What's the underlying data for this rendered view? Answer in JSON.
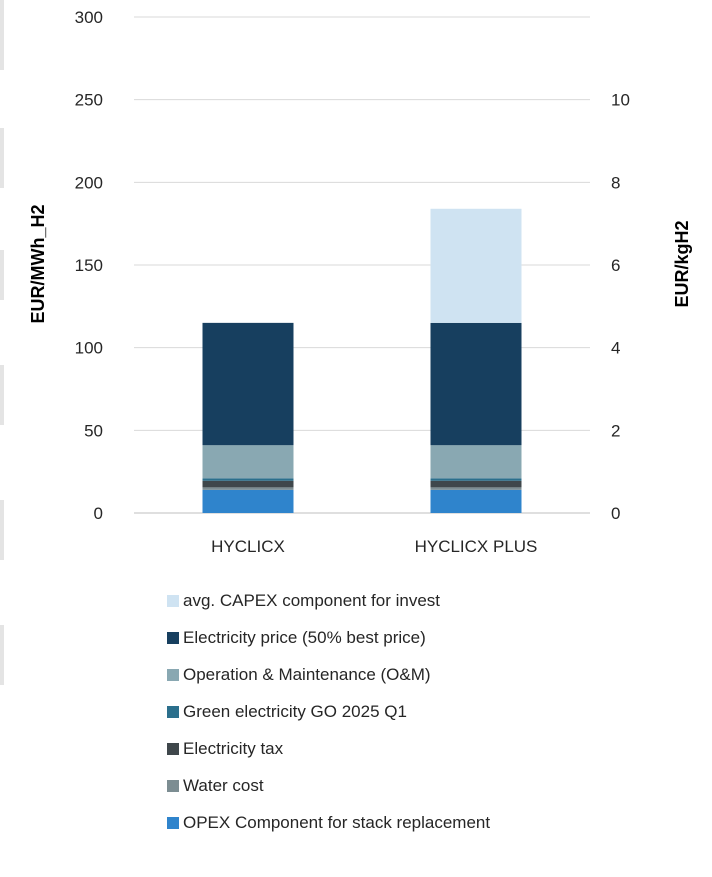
{
  "chart_data": {
    "type": "bar",
    "stacked": true,
    "categories": [
      "HYCLICX",
      "HYCLICX PLUS"
    ],
    "series": [
      {
        "name": "OPEX Component for stack replacement",
        "color": "#2f84cc",
        "values": [
          14,
          14
        ]
      },
      {
        "name": "Water cost",
        "color": "#7c8d92",
        "values": [
          1.5,
          1.5
        ]
      },
      {
        "name": "Electricity tax",
        "color": "#3f474b",
        "values": [
          4,
          4
        ]
      },
      {
        "name": "Green electricity GO 2025 Q1",
        "color": "#2b6f8c",
        "values": [
          1.5,
          1.5
        ]
      },
      {
        "name": "Operation & Maintenance (O&M)",
        "color": "#89a8b2",
        "values": [
          20,
          20
        ]
      },
      {
        "name": "Electricity price (50% best price)",
        "color": "#173f5f",
        "values": [
          74,
          74
        ]
      },
      {
        "name": "avg. CAPEX component for invest",
        "color": "#cfe3f2",
        "values": [
          0,
          69
        ]
      }
    ],
    "ylabel": "EUR/MWh_H2",
    "y2label": "EUR/kgH2",
    "ylim": [
      0,
      300
    ],
    "y2lim": [
      0,
      12
    ],
    "yticks": [
      "0",
      "50",
      "100",
      "150",
      "200",
      "250",
      "300"
    ],
    "y2ticks": [
      "0",
      "2",
      "4",
      "6",
      "8",
      "10"
    ],
    "grid": true,
    "legend_position": "bottom",
    "legend_order": [
      "avg. CAPEX component for invest",
      "Electricity price (50% best price)",
      "Operation & Maintenance (O&M)",
      "Green electricity GO 2025 Q1",
      "Electricity tax",
      "Water cost",
      "OPEX Component for stack replacement"
    ]
  }
}
